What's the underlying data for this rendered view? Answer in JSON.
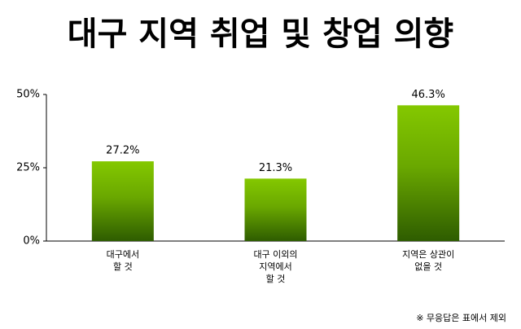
{
  "chart_data": {
    "type": "bar",
    "title": "대구 지역 취업 및 창업 의향",
    "categories": [
      "대구에서\n할 것",
      "대구 이외의\n지역에서\n할 것",
      "지역은 상관이\n없을 것"
    ],
    "values": [
      27.2,
      21.3,
      46.3
    ],
    "value_labels": [
      "27.2%",
      "21.3%",
      "46.3%"
    ],
    "color": "#7cc000",
    "ylim": [
      0,
      50
    ],
    "yticks": [
      {
        "value": 0,
        "label": "0%"
      },
      {
        "value": 25,
        "label": "25%"
      },
      {
        "value": 50,
        "label": "50%"
      }
    ],
    "note": "※ 무응답은 표에서 제외"
  }
}
